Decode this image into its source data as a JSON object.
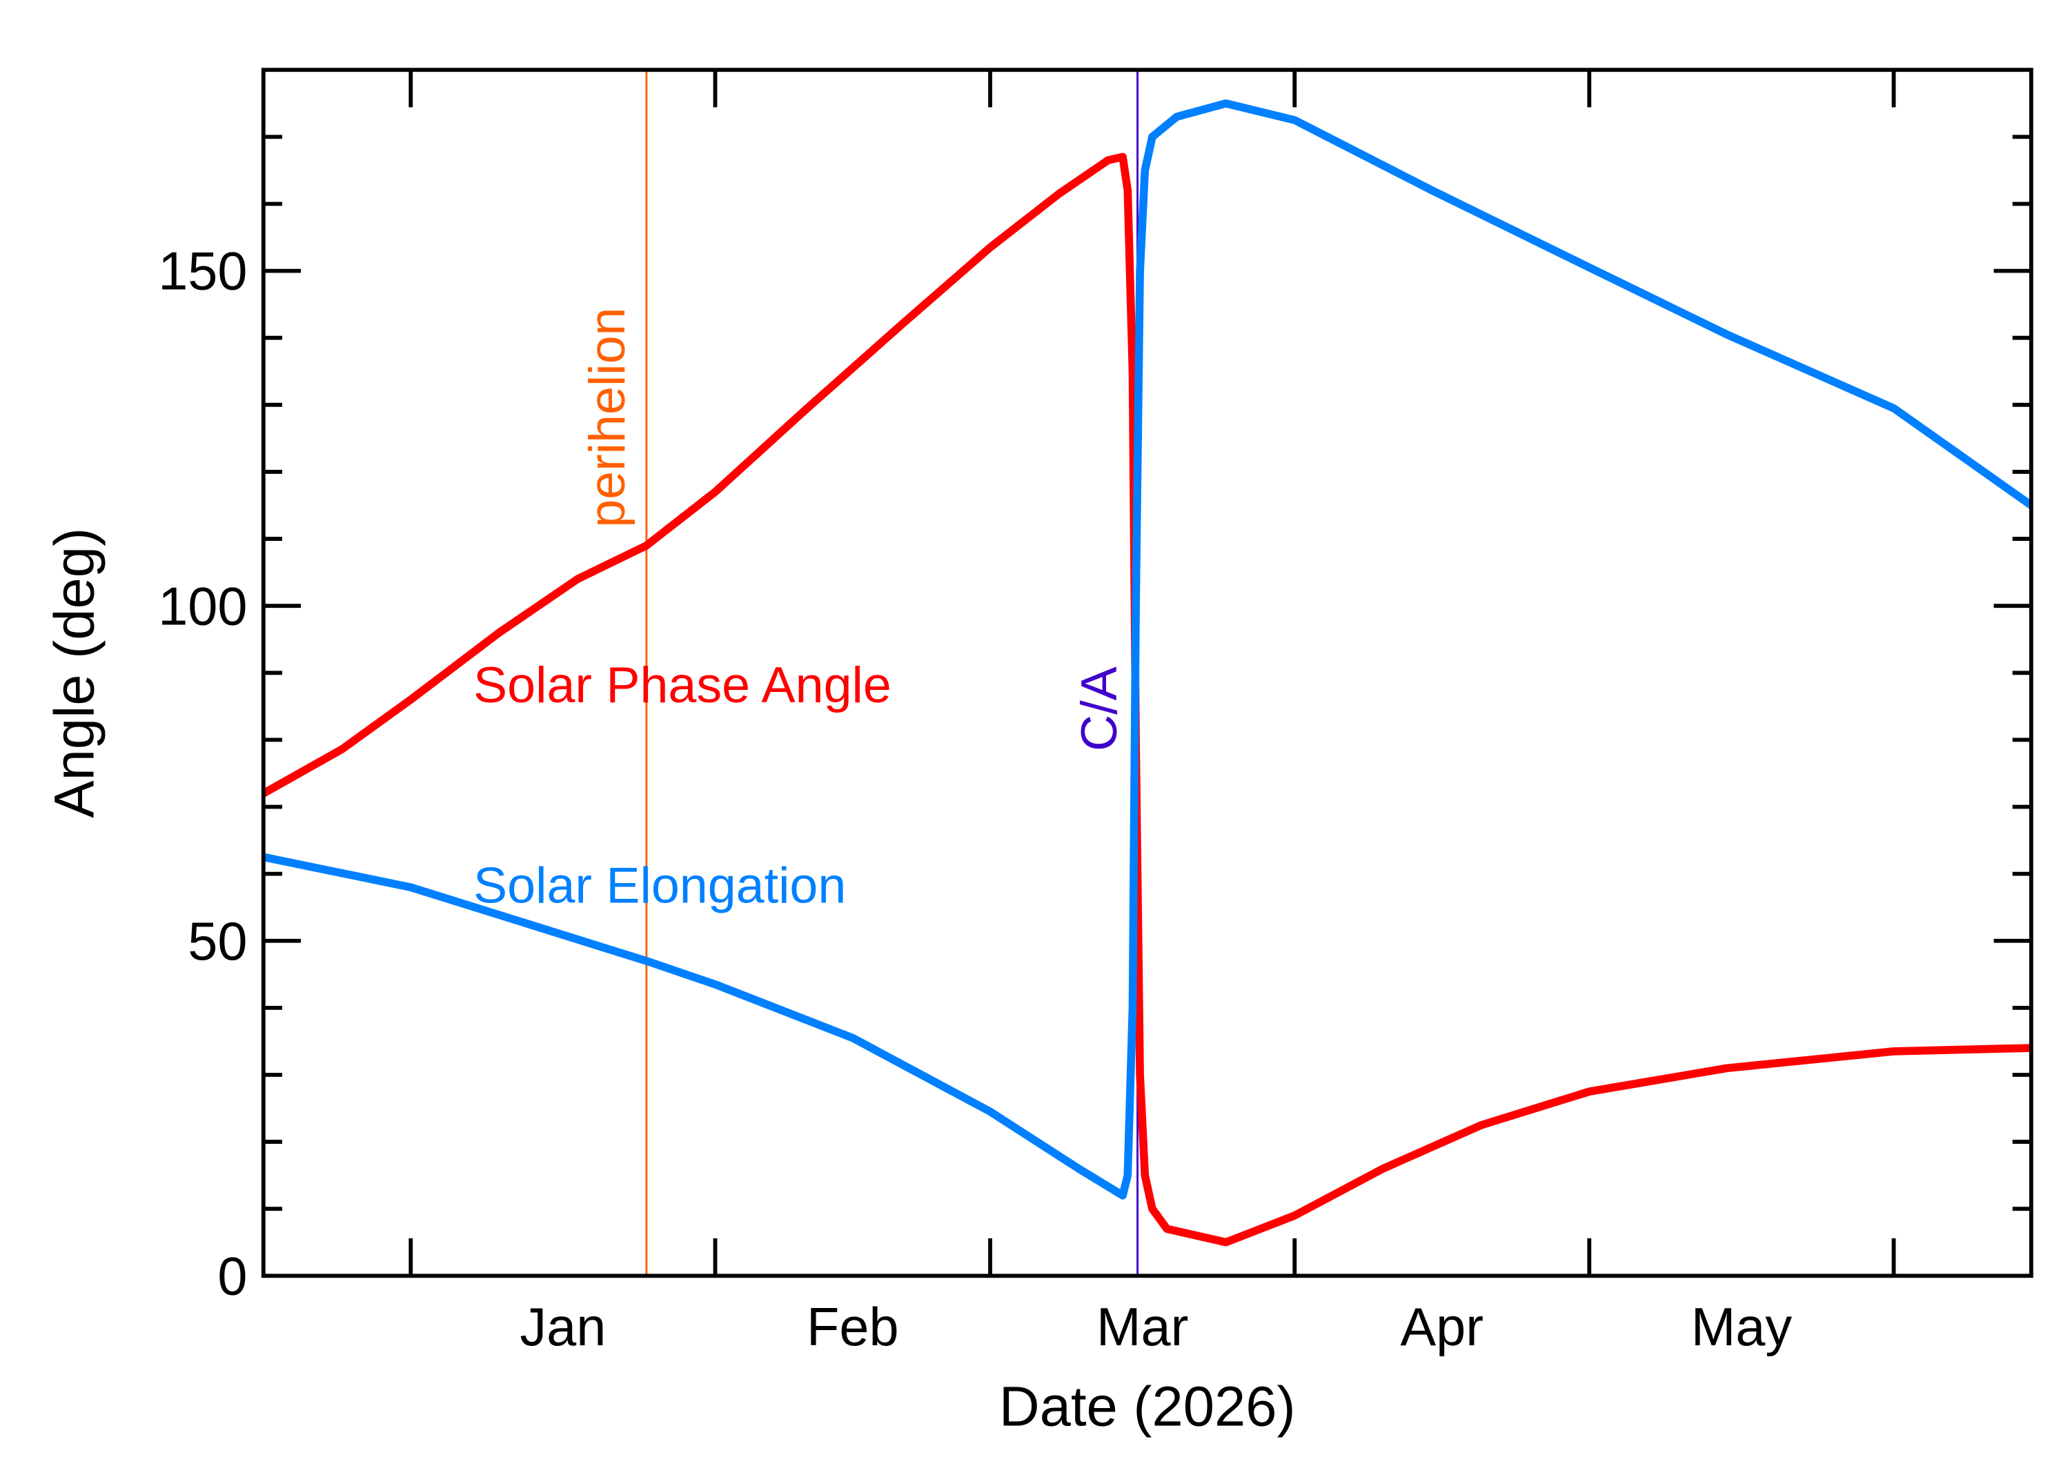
{
  "chart_data": {
    "type": "line",
    "title": "",
    "xlabel": "Date (2026)",
    "ylabel": "Angle (deg)",
    "xlim": [
      "2025-12-17",
      "2026-06-15"
    ],
    "ylim": [
      0,
      180
    ],
    "y_ticks": [
      0,
      50,
      100,
      150
    ],
    "y_minor_step": 10,
    "x_ticks": [
      "2026-01-01",
      "2026-02-01",
      "2026-03-01",
      "2026-04-01",
      "2026-05-01",
      "2026-06-01"
    ],
    "x_tick_labels": [
      {
        "label": "Jan",
        "month": "2026-01"
      },
      {
        "label": "Feb",
        "month": "2026-02"
      },
      {
        "label": "Mar",
        "month": "2026-03"
      },
      {
        "label": "Apr",
        "month": "2026-04"
      },
      {
        "label": "May",
        "month": "2026-05"
      }
    ],
    "grid": false,
    "series": [
      {
        "name": "Solar Phase Angle",
        "color": "#ff0000",
        "points": [
          [
            "2025-12-17",
            72
          ],
          [
            "2025-12-25",
            78.6
          ],
          [
            "2026-01-01",
            86
          ],
          [
            "2026-01-10",
            96
          ],
          [
            "2026-01-18",
            104
          ],
          [
            "2026-01-25",
            109
          ],
          [
            "2026-02-01",
            117
          ],
          [
            "2026-02-10",
            129
          ],
          [
            "2026-02-20",
            142
          ],
          [
            "2026-03-01",
            153.5
          ],
          [
            "2026-03-08",
            161.5
          ],
          [
            "2026-03-13",
            166.5
          ],
          [
            "2026-03-14T12:00",
            167
          ],
          [
            "2026-03-15T00:00",
            162
          ],
          [
            "2026-03-15T12:00",
            135
          ],
          [
            "2026-03-15T20:00",
            80
          ],
          [
            "2026-03-16T06:00",
            30
          ],
          [
            "2026-03-16T18:00",
            15
          ],
          [
            "2026-03-17T12:00",
            10
          ],
          [
            "2026-03-19",
            7
          ],
          [
            "2026-03-25",
            5
          ],
          [
            "2026-04-01",
            9
          ],
          [
            "2026-04-10",
            16
          ],
          [
            "2026-04-20",
            22.5
          ],
          [
            "2026-05-01",
            27.5
          ],
          [
            "2026-05-15",
            31
          ],
          [
            "2026-06-01",
            33.5
          ],
          [
            "2026-06-15",
            34
          ]
        ]
      },
      {
        "name": "Solar Elongation",
        "color": "#0080ff",
        "points": [
          [
            "2025-12-17",
            62.5
          ],
          [
            "2026-01-01",
            58
          ],
          [
            "2026-01-25",
            47
          ],
          [
            "2026-02-01",
            43.5
          ],
          [
            "2026-02-15",
            35.5
          ],
          [
            "2026-03-01",
            24.5
          ],
          [
            "2026-03-10",
            16
          ],
          [
            "2026-03-14T12:00",
            12
          ],
          [
            "2026-03-15T00:00",
            15
          ],
          [
            "2026-03-15T12:00",
            40
          ],
          [
            "2026-03-15T20:00",
            100
          ],
          [
            "2026-03-16T06:00",
            150
          ],
          [
            "2026-03-16T18:00",
            165
          ],
          [
            "2026-03-17T12:00",
            170
          ],
          [
            "2026-03-20",
            173
          ],
          [
            "2026-03-25",
            175
          ],
          [
            "2026-04-01",
            172.5
          ],
          [
            "2026-04-15",
            162
          ],
          [
            "2026-05-01",
            150.5
          ],
          [
            "2026-05-15",
            140.5
          ],
          [
            "2026-06-01",
            129.5
          ],
          [
            "2026-06-15",
            115
          ]
        ]
      }
    ],
    "annotations": [
      {
        "label": "perihelion",
        "date": "2026-01-25",
        "color": "#ff6000"
      },
      {
        "label": "C/A",
        "date": "2026-03-16",
        "color": "#4000cc"
      }
    ]
  }
}
